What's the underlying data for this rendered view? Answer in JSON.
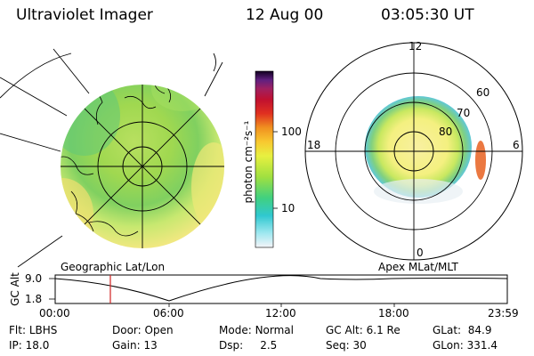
{
  "header": {
    "instrument": "Ultraviolet Imager",
    "date": "12 Aug 00",
    "time": "03:05:30 UT"
  },
  "colorbar": {
    "unit_label": "photon cm⁻²s⁻¹",
    "ticks": [
      "100",
      "10"
    ],
    "scale": "log"
  },
  "geo_panel": {
    "label": "Geographic Lat/Lon"
  },
  "polar_panel": {
    "label": "Apex MLat/MLT",
    "mlt_labels": [
      "12",
      "18",
      "6",
      "0"
    ],
    "lat_labels": [
      "60",
      "70",
      "80"
    ]
  },
  "orbit_plot": {
    "ylabel": "GC Alt",
    "yticks": [
      "9.0",
      "1.8"
    ],
    "xticks": [
      "00:00",
      "06:00",
      "12:00",
      "18:00",
      "23:59"
    ],
    "current_time_marker": "03:05:30"
  },
  "info": {
    "row1": [
      {
        "label": "Flt:",
        "value": "LBHS"
      },
      {
        "label": "Door:",
        "value": "Open"
      },
      {
        "label": "Mode:",
        "value": "Normal"
      },
      {
        "label": "GC Alt:",
        "value": "6.1 Re"
      },
      {
        "label": "GLat:",
        "value": "84.9"
      }
    ],
    "row2": [
      {
        "label": "IP:",
        "value": "18.0"
      },
      {
        "label": "Gain:",
        "value": "13"
      },
      {
        "label": "Dsp:",
        "value": "2.5"
      },
      {
        "label": "Seq:",
        "value": "30"
      },
      {
        "label": "GLon:",
        "value": "331.4"
      }
    ]
  },
  "colors": {
    "low": "#e6f0f8",
    "cyan": "#33c8d8",
    "green": "#80d040",
    "yellow": "#f8f060",
    "orange": "#f0a020",
    "red": "#d02020",
    "dark": "#200030"
  }
}
